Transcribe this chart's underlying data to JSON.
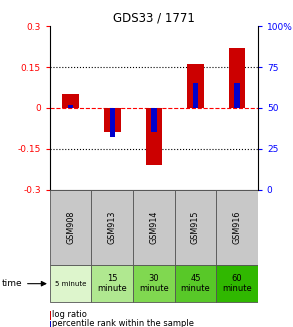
{
  "title": "GDS33 / 1771",
  "categories": [
    "GSM908",
    "GSM913",
    "GSM914",
    "GSM915",
    "GSM916"
  ],
  "time_labels": [
    "5 minute",
    "15\nminute",
    "30\nminute",
    "45\nminute",
    "60\nminute"
  ],
  "log_ratios": [
    0.05,
    -0.09,
    -0.21,
    0.16,
    0.22
  ],
  "percentile_ranks": [
    52,
    32,
    35,
    65,
    65
  ],
  "bar_color_red": "#cc0000",
  "bar_color_blue": "#0000cc",
  "ylim": [
    -0.3,
    0.3
  ],
  "y2lim": [
    0,
    100
  ],
  "yticks_left": [
    -0.3,
    -0.15,
    0,
    0.15,
    0.3
  ],
  "yticks_right": [
    0,
    25,
    50,
    75,
    100
  ],
  "ytick_labels_left": [
    "-0.3",
    "-0.15",
    "0",
    "0.15",
    "0.3"
  ],
  "ytick_labels_right": [
    "0",
    "25",
    "50",
    "75",
    "100%"
  ],
  "hline_dotted": [
    -0.15,
    0.15
  ],
  "hline_dashed": [
    0.0
  ],
  "legend_log_ratio": "log ratio",
  "legend_percentile": "percentile rank within the sample",
  "bar_width": 0.4,
  "blue_bar_width": 0.13,
  "gsm_bg_color": "#c8c8c8",
  "time_bg_colors": [
    "#ddf5cc",
    "#b0e890",
    "#80d850",
    "#58c828",
    "#30b800"
  ],
  "gsm_cell_edge": "#888888",
  "time_cell_edge": "#888888"
}
